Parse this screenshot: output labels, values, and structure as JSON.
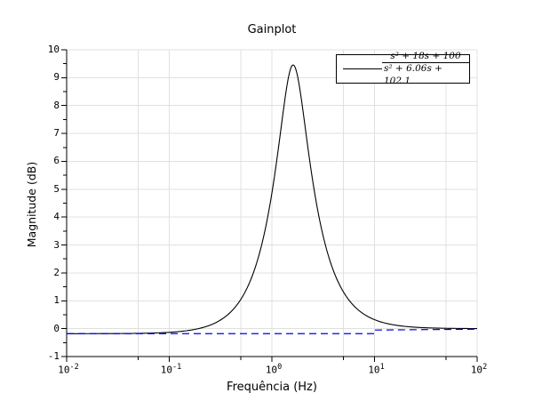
{
  "title": "Gainplot",
  "axes": {
    "x_label": "Frequência (Hz)",
    "y_label": "Magnitude (dB)",
    "x_tick_base": "10",
    "x_tick_exponents": [
      -2,
      -1,
      0,
      1,
      2
    ],
    "y_ticks": [
      -1,
      0,
      1,
      2,
      3,
      4,
      5,
      6,
      7,
      8,
      9,
      10
    ]
  },
  "legend": {
    "numerator": "s² + 18s + 100",
    "denominator": "s² + 6.06s + 102.1"
  },
  "colors": {
    "gain_curve": "#000000",
    "asymptote": "#0000ee",
    "grid": "#e0e0e0",
    "axis": "#000000"
  },
  "chart_data": {
    "type": "line",
    "title": "Gainplot",
    "xlabel": "Frequência (Hz)",
    "ylabel": "Magnitude (dB)",
    "x_scale": "log",
    "xlim": [
      0.01,
      100
    ],
    "ylim": [
      -1,
      10
    ],
    "grid": true,
    "legend_position": "top-right",
    "series": [
      {
        "name": "gain (s²+18s+100)/(s²+6.06s+102.1)",
        "color": "#000000",
        "style": "solid",
        "transfer_function": {
          "num": [
            1,
            18,
            100
          ],
          "den": [
            1,
            6.06,
            102.1
          ],
          "s": "j*2*pi*f"
        },
        "key_points": [
          {
            "freq_hz": 0.01,
            "gain_db": -0.18
          },
          {
            "freq_hz": 0.1,
            "gain_db": -0.14
          },
          {
            "freq_hz": 0.3,
            "gain_db": 0.26
          },
          {
            "freq_hz": 0.5,
            "gain_db": 1.07
          },
          {
            "freq_hz": 0.7,
            "gain_db": 2.28
          },
          {
            "freq_hz": 1.0,
            "gain_db": 4.86
          },
          {
            "freq_hz": 1.3,
            "gain_db": 7.88
          },
          {
            "freq_hz": 1.6,
            "gain_db": 9.45
          },
          {
            "freq_hz": 2.0,
            "gain_db": 7.86
          },
          {
            "freq_hz": 3.0,
            "gain_db": 3.69
          },
          {
            "freq_hz": 5.0,
            "gain_db": 1.31
          },
          {
            "freq_hz": 10.0,
            "gain_db": 0.32
          },
          {
            "freq_hz": 100.0,
            "gain_db": 0.0
          }
        ]
      },
      {
        "name": "asymptote",
        "color": "#0000ee",
        "style": "dashed",
        "points": [
          [
            0.01,
            -0.18
          ],
          [
            10,
            -0.18
          ],
          [
            10,
            -0.05
          ],
          [
            100,
            -0.02
          ]
        ]
      }
    ]
  }
}
